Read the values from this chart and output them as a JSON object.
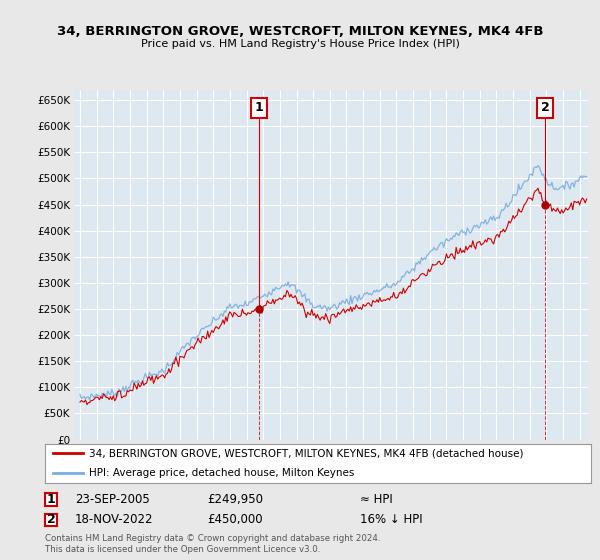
{
  "title": "34, BERRINGTON GROVE, WESTCROFT, MILTON KEYNES, MK4 4FB",
  "subtitle": "Price paid vs. HM Land Registry's House Price Index (HPI)",
  "red_label": "34, BERRINGTON GROVE, WESTCROFT, MILTON KEYNES, MK4 4FB (detached house)",
  "blue_label": "HPI: Average price, detached house, Milton Keynes",
  "marker1_date": "23-SEP-2005",
  "marker1_price": 249950,
  "marker1_hpi": "≈ HPI",
  "marker2_date": "18-NOV-2022",
  "marker2_price": 450000,
  "marker2_hpi": "16% ↓ HPI",
  "footnote": "Contains HM Land Registry data © Crown copyright and database right 2024.\nThis data is licensed under the Open Government Licence v3.0.",
  "ylim": [
    0,
    670000
  ],
  "yticks": [
    0,
    50000,
    100000,
    150000,
    200000,
    250000,
    300000,
    350000,
    400000,
    450000,
    500000,
    550000,
    600000,
    650000
  ],
  "xlim_left": 1994.7,
  "xlim_right": 2025.5,
  "bg_color": "#e8e8e8",
  "plot_bg_color": "#dde8f0",
  "grid_color": "#ffffff",
  "red_color": "#cc0000",
  "blue_color": "#7aade0",
  "marker_color": "#aa0000",
  "t1": 2005.73,
  "t2": 2022.88,
  "price1": 249950,
  "price2": 450000
}
